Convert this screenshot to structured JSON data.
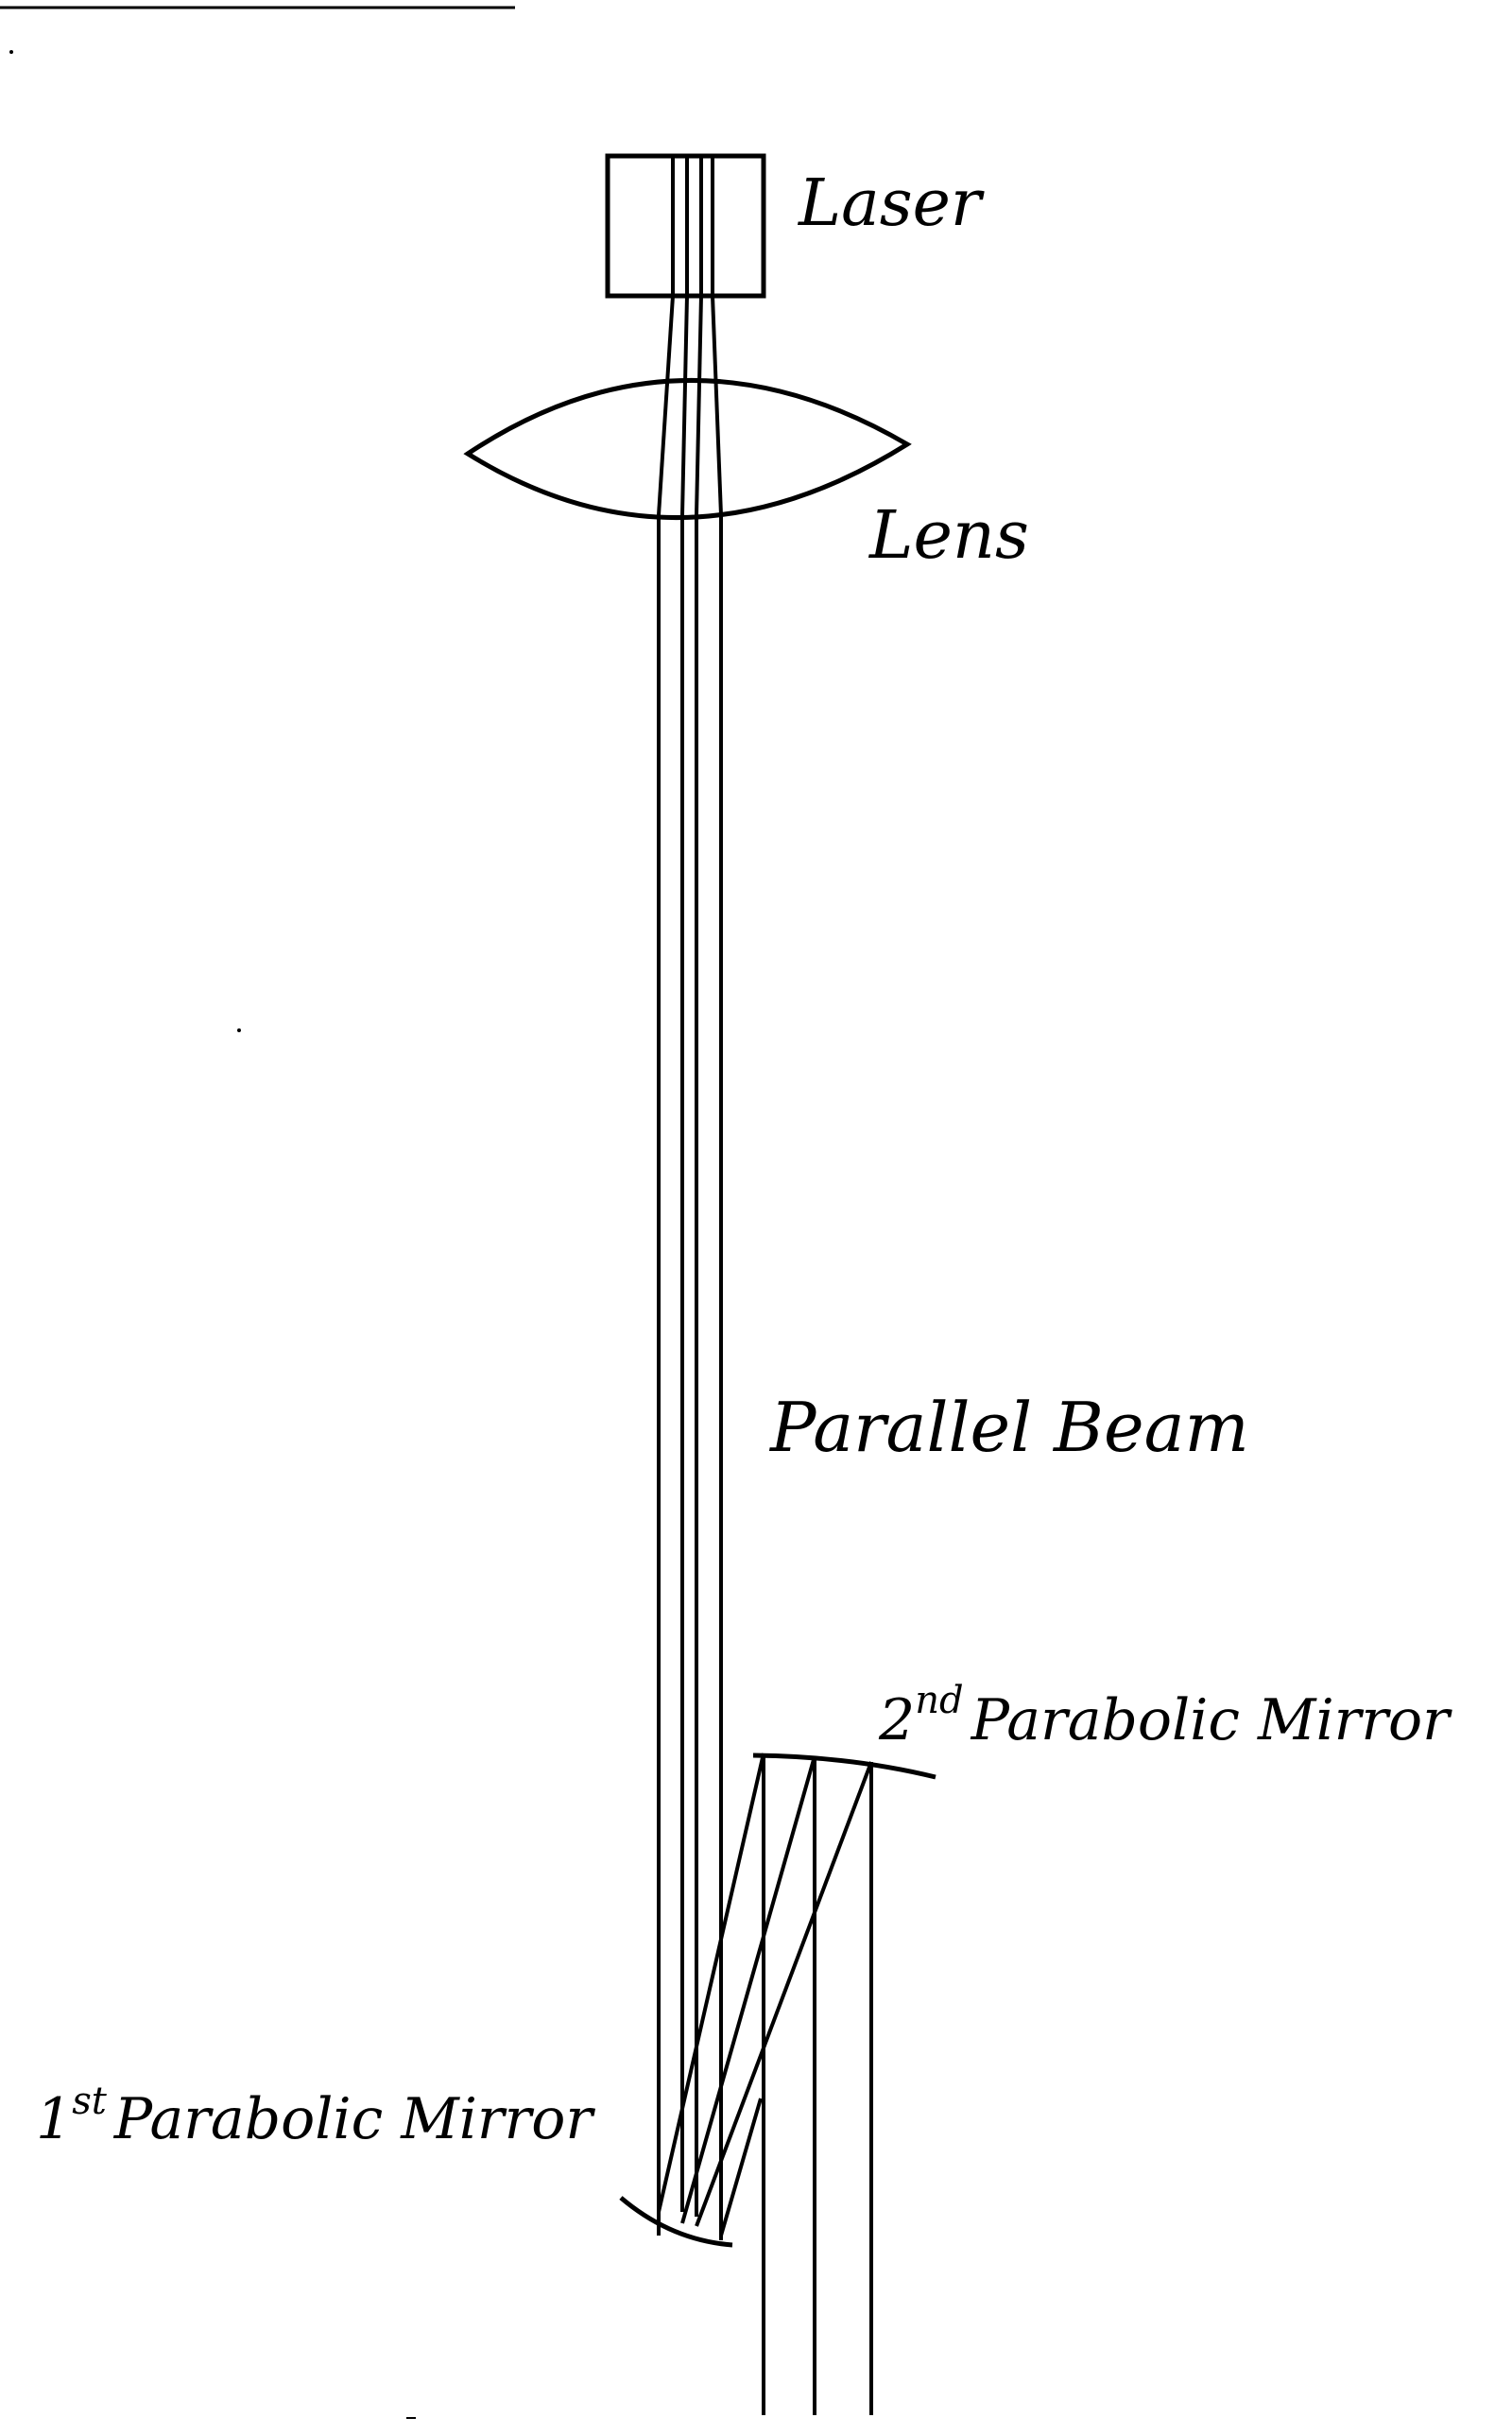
{
  "diagram": {
    "labels": {
      "laser": "Laser",
      "lens": "Lens",
      "parallel_beam": "Parallel Beam",
      "second_mirror_ordinal": "2",
      "second_mirror_superscript": "nd",
      "second_mirror_name": "Parabolic Mirror",
      "first_mirror_ordinal": "1",
      "first_mirror_superscript": "st",
      "first_mirror_name": "Parabolic Mirror"
    },
    "colors": {
      "ink": "#000000",
      "background": "#ffffff"
    }
  }
}
